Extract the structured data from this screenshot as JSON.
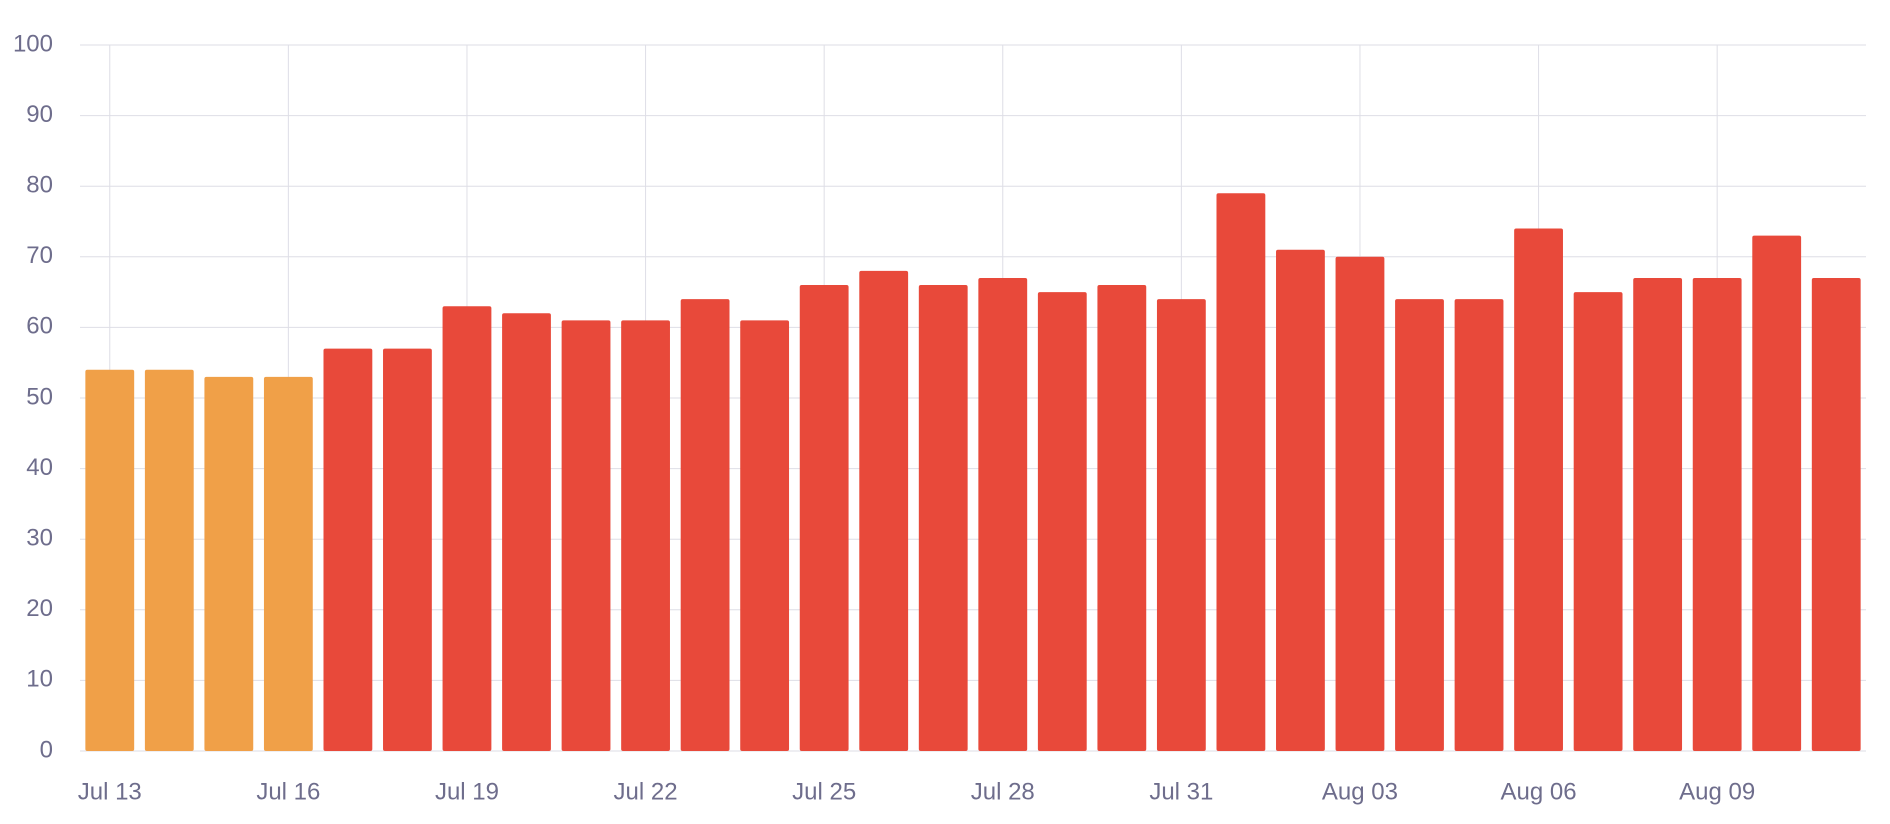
{
  "chart_data": {
    "type": "bar",
    "categories": [
      "Jul 13",
      null,
      null,
      "Jul 16",
      null,
      null,
      "Jul 19",
      null,
      null,
      "Jul 22",
      null,
      null,
      "Jul 25",
      null,
      null,
      "Jul 28",
      null,
      null,
      "Jul 31",
      null,
      null,
      "Aug 03",
      null,
      null,
      "Aug 06",
      null,
      null,
      "Aug 09",
      null,
      null
    ],
    "values": [
      54,
      54,
      53,
      53,
      57,
      57,
      63,
      62,
      61,
      61,
      64,
      61,
      66,
      68,
      66,
      67,
      65,
      66,
      64,
      79,
      71,
      70,
      64,
      64,
      74,
      65,
      67,
      67,
      73,
      67
    ],
    "colors": [
      "#f0a048",
      "#f0a048",
      "#f0a048",
      "#f0a048",
      "#e8493a",
      "#e8493a",
      "#e8493a",
      "#e8493a",
      "#e8493a",
      "#e8493a",
      "#e8493a",
      "#e8493a",
      "#e8493a",
      "#e8493a",
      "#e8493a",
      "#e8493a",
      "#e8493a",
      "#e8493a",
      "#e8493a",
      "#e8493a",
      "#e8493a",
      "#e8493a",
      "#e8493a",
      "#e8493a",
      "#e8493a",
      "#e8493a",
      "#e8493a",
      "#e8493a",
      "#e8493a",
      "#e8493a"
    ],
    "ylim": [
      0,
      100
    ],
    "yticks": [
      0,
      10,
      20,
      30,
      40,
      50,
      60,
      70,
      80,
      90,
      100
    ],
    "grid": true
  }
}
